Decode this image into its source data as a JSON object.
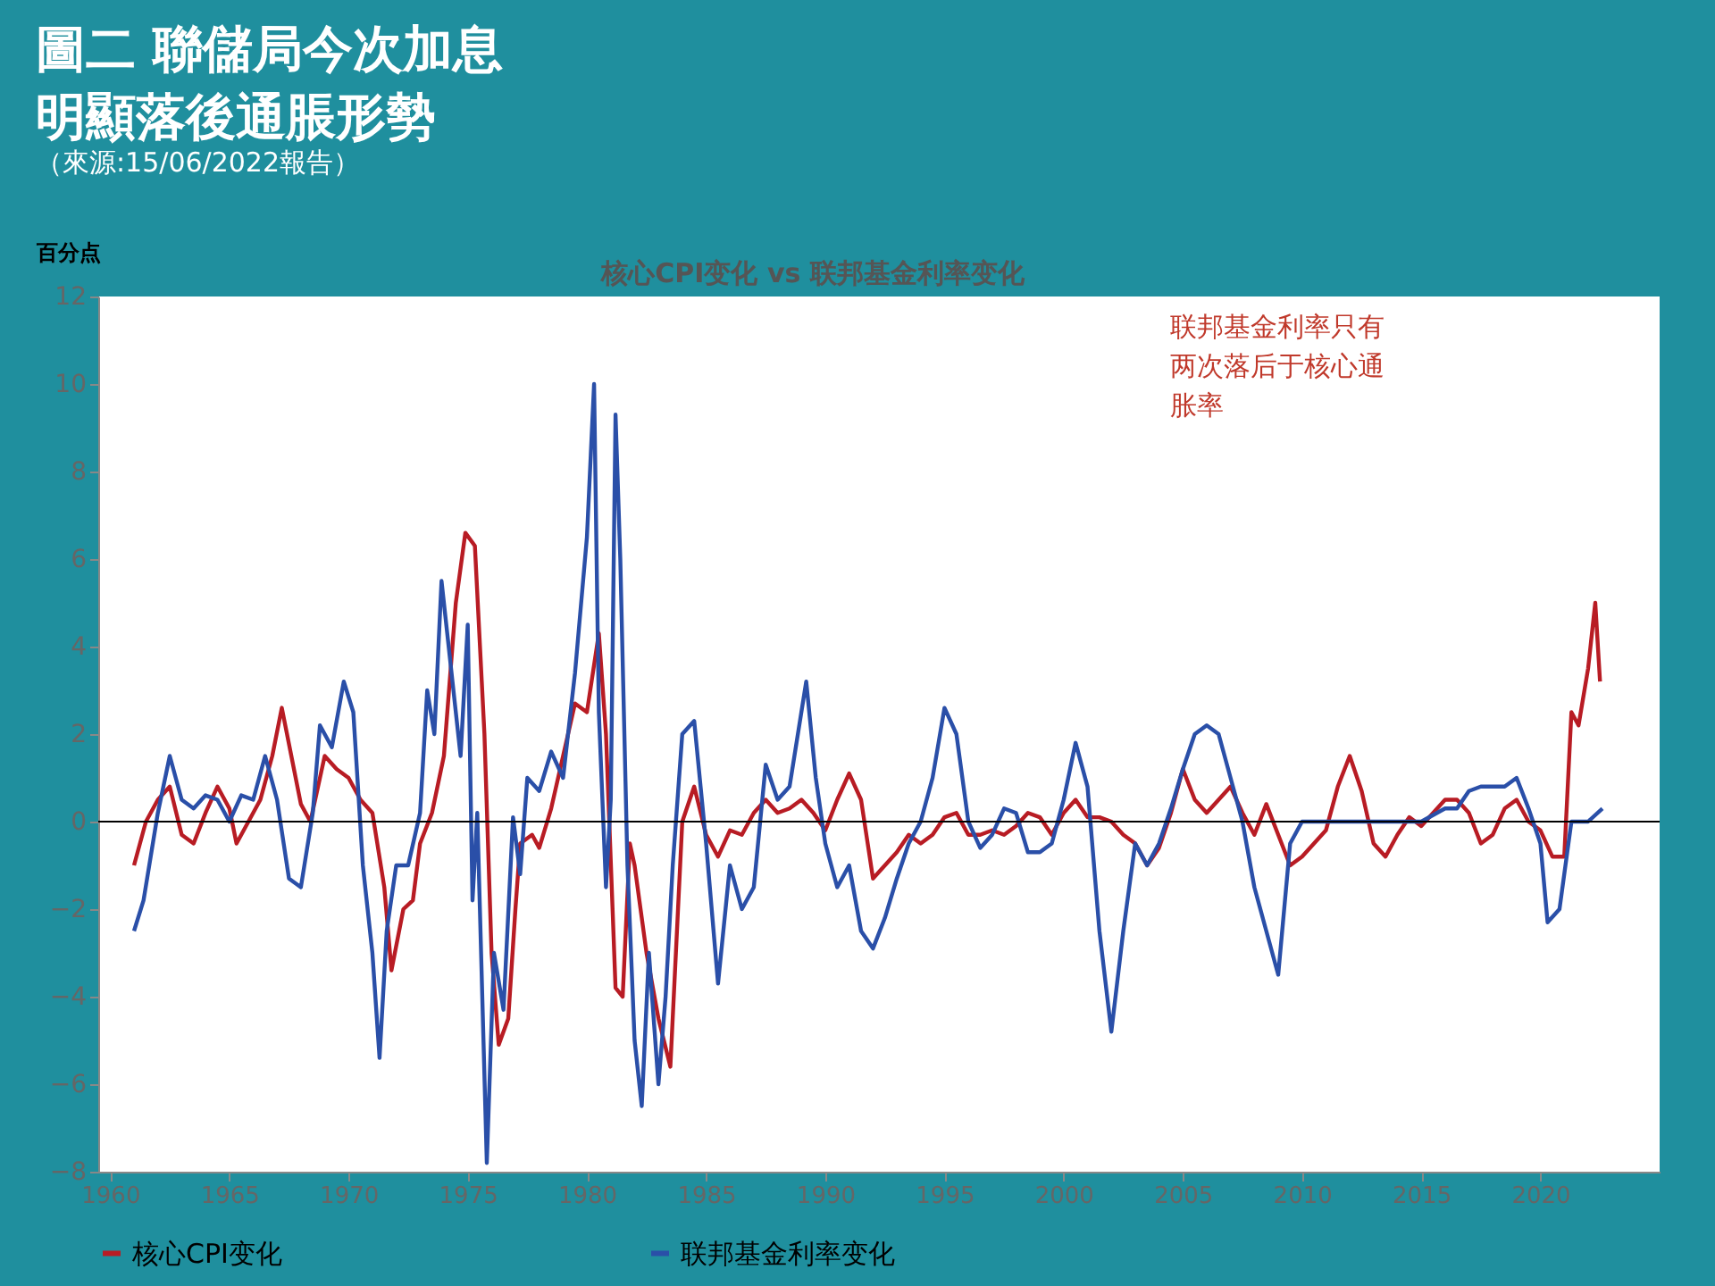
{
  "chart_data": {
    "type": "line",
    "title": "圖二 聯儲局今次加息明顯落後通脹形勢",
    "subtitle": "（來源:15/06/2022報告）",
    "ylabel": "百分点",
    "annotations": [
      "核心CPI变化 vs 联邦基金利率变化",
      "联邦基金利率只有两次落后于核心通胀率"
    ],
    "xlim": [
      1959.5,
      2025
    ],
    "xticks": [
      1960,
      1965,
      1970,
      1975,
      1980,
      1985,
      1990,
      1995,
      2000,
      2005,
      2010,
      2015,
      2020
    ],
    "ylim": [
      -8,
      12
    ],
    "yticks": [
      -8,
      -6,
      -4,
      -2,
      0,
      2,
      4,
      6,
      8,
      10,
      12
    ],
    "grid": false,
    "legend": "bottom",
    "marker": "none",
    "line_style": "solid",
    "ref_lines": [
      {
        "axis": "y",
        "value": 0,
        "color": "#000000"
      }
    ],
    "series": [
      {
        "name": "核心CPI变化",
        "color": "#b81c24",
        "x": [
          1961,
          1961.5,
          1962,
          1962.5,
          1963,
          1963.5,
          1964,
          1964.5,
          1965,
          1965.3,
          1965.8,
          1966.3,
          1966.8,
          1967.2,
          1967.6,
          1968,
          1968.4,
          1968.8,
          1969,
          1969.5,
          1970,
          1970.5,
          1971,
          1971.5,
          1971.8,
          1972.3,
          1972.7,
          1973,
          1973.5,
          1974,
          1974.5,
          1974.9,
          1975.3,
          1975.7,
          1976,
          1976.3,
          1976.7,
          1977,
          1977.2,
          1977.7,
          1978,
          1978.5,
          1979,
          1979.5,
          1980,
          1980.5,
          1980.8,
          1981.2,
          1981.5,
          1981.8,
          1982,
          1982.5,
          1983,
          1983.5,
          1984,
          1984.5,
          1985,
          1985.5,
          1986,
          1986.5,
          1987,
          1987.5,
          1988,
          1988.5,
          1989,
          1989.5,
          1990,
          1990.5,
          1991,
          1991.5,
          1992,
          1992.5,
          1993,
          1993.5,
          1994,
          1994.5,
          1995,
          1995.5,
          1996,
          1996.5,
          1997,
          1997.5,
          1998,
          1998.5,
          1999,
          1999.5,
          2000,
          2000.5,
          2001,
          2001.5,
          2002,
          2002.5,
          2003,
          2003.5,
          2004,
          2004.5,
          2005,
          2005.5,
          2006,
          2006.5,
          2007,
          2007.5,
          2008,
          2008.5,
          2009,
          2009.5,
          2010,
          2010.5,
          2011,
          2011.5,
          2012,
          2012.5,
          2013,
          2013.5,
          2014,
          2014.5,
          2015,
          2015.5,
          2016,
          2016.5,
          2017,
          2017.5,
          2018,
          2018.5,
          2019,
          2019.5,
          2020,
          2020.5,
          2021,
          2021.3,
          2021.6,
          2022,
          2022.3,
          2022.5
        ],
        "values": [
          -1.0,
          0.0,
          0.5,
          0.8,
          -0.3,
          -0.5,
          0.2,
          0.8,
          0.3,
          -0.5,
          0.0,
          0.5,
          1.5,
          2.6,
          1.5,
          0.4,
          0.0,
          1.0,
          1.5,
          1.2,
          1.0,
          0.5,
          0.2,
          -1.5,
          -3.4,
          -2.0,
          -1.8,
          -0.5,
          0.2,
          1.5,
          5.0,
          6.6,
          6.3,
          2.0,
          -3.0,
          -5.1,
          -4.5,
          -2.0,
          -0.5,
          -0.3,
          -0.6,
          0.3,
          1.5,
          2.7,
          2.5,
          4.3,
          2.0,
          -3.8,
          -4.0,
          -0.5,
          -1.0,
          -3.0,
          -4.5,
          -5.6,
          0.0,
          0.8,
          -0.3,
          -0.8,
          -0.2,
          -0.3,
          0.2,
          0.5,
          0.2,
          0.3,
          0.5,
          0.2,
          -0.2,
          0.5,
          1.1,
          0.5,
          -1.3,
          -1.0,
          -0.7,
          -0.3,
          -0.5,
          -0.3,
          0.1,
          0.2,
          -0.3,
          -0.3,
          -0.2,
          -0.3,
          -0.1,
          0.2,
          0.1,
          -0.3,
          0.2,
          0.5,
          0.1,
          0.1,
          0.0,
          -0.3,
          -0.5,
          -1.0,
          -0.6,
          0.2,
          1.2,
          0.5,
          0.2,
          0.5,
          0.8,
          0.2,
          -0.3,
          0.4,
          -0.3,
          -1.0,
          -0.8,
          -0.5,
          -0.2,
          0.8,
          1.5,
          0.7,
          -0.5,
          -0.8,
          -0.3,
          0.1,
          -0.1,
          0.2,
          0.5,
          0.5,
          0.2,
          -0.5,
          -0.3,
          0.3,
          0.5,
          0.0,
          -0.2,
          -0.8,
          -0.8,
          2.5,
          2.2,
          3.5,
          5.0,
          3.2
        ]
      },
      {
        "name": "联邦基金利率变化",
        "color": "#2a4fa8",
        "x": [
          1961,
          1961.4,
          1962,
          1962.5,
          1963,
          1963.5,
          1964,
          1964.5,
          1965,
          1965.5,
          1966,
          1966.5,
          1967,
          1967.5,
          1968,
          1968.5,
          1968.8,
          1969.3,
          1969.8,
          1970.2,
          1970.6,
          1971,
          1971.3,
          1971.6,
          1972,
          1972.5,
          1973,
          1973.3,
          1973.6,
          1973.9,
          1974.3,
          1974.7,
          1975,
          1975.2,
          1975.4,
          1975.8,
          1976.1,
          1976.5,
          1976.9,
          1977.2,
          1977.5,
          1978,
          1978.5,
          1979,
          1979.5,
          1980,
          1980.3,
          1980.5,
          1980.8,
          1981,
          1981.2,
          1981.4,
          1981.7,
          1982,
          1982.3,
          1982.6,
          1983,
          1983.3,
          1983.6,
          1984,
          1984.5,
          1985,
          1985.5,
          1986,
          1986.5,
          1987,
          1987.5,
          1988,
          1988.5,
          1989.2,
          1989.6,
          1990,
          1990.5,
          1991,
          1991.5,
          1992,
          1992.5,
          1993,
          1993.5,
          1994,
          1994.5,
          1995,
          1995.5,
          1996,
          1996.5,
          1997,
          1997.5,
          1998,
          1998.5,
          1999,
          1999.5,
          2000,
          2000.5,
          2001,
          2001.5,
          2002,
          2002.5,
          2003,
          2003.5,
          2004,
          2004.5,
          2005,
          2005.5,
          2006,
          2006.5,
          2007,
          2007.5,
          2008,
          2008.5,
          2009,
          2009.5,
          2010,
          2011,
          2012,
          2013,
          2014,
          2015,
          2016,
          2016.5,
          2017,
          2017.5,
          2018,
          2018.5,
          2019,
          2019.5,
          2020,
          2020.3,
          2020.8,
          2021.3,
          2022,
          2022.6
        ],
        "values": [
          -2.5,
          -1.8,
          0.2,
          1.5,
          0.5,
          0.3,
          0.6,
          0.5,
          0.0,
          0.6,
          0.5,
          1.5,
          0.5,
          -1.3,
          -1.5,
          0.2,
          2.2,
          1.7,
          3.2,
          2.5,
          -1.0,
          -3.0,
          -5.4,
          -2.5,
          -1.0,
          -1.0,
          0.2,
          3.0,
          2.0,
          5.5,
          3.5,
          1.5,
          4.5,
          -1.8,
          0.2,
          -7.8,
          -3.0,
          -4.3,
          0.1,
          -1.2,
          1.0,
          0.7,
          1.6,
          1.0,
          3.4,
          6.5,
          10.0,
          2.5,
          -1.5,
          0.5,
          9.3,
          6.0,
          -1.0,
          -5.0,
          -6.5,
          -3.0,
          -6.0,
          -4.0,
          -1.0,
          2.0,
          2.3,
          -0.5,
          -3.7,
          -1.0,
          -2.0,
          -1.5,
          1.3,
          0.5,
          0.8,
          3.2,
          1.0,
          -0.5,
          -1.5,
          -1.0,
          -2.5,
          -2.9,
          -2.2,
          -1.3,
          -0.5,
          0.0,
          1.0,
          2.6,
          2.0,
          0.0,
          -0.6,
          -0.3,
          0.3,
          0.2,
          -0.7,
          -0.7,
          -0.5,
          0.5,
          1.8,
          0.8,
          -2.5,
          -4.8,
          -2.5,
          -0.5,
          -1.0,
          -0.5,
          0.3,
          1.2,
          2.0,
          2.2,
          2.0,
          1.0,
          0.0,
          -1.5,
          -2.5,
          -3.5,
          -0.5,
          0.0,
          0.0,
          0.0,
          0.0,
          0.0,
          0.0,
          0.3,
          0.3,
          0.7,
          0.8,
          0.8,
          0.8,
          1.0,
          0.3,
          -0.5,
          -2.3,
          -2.0,
          0.0,
          0.0,
          0.3
        ]
      }
    ]
  }
}
